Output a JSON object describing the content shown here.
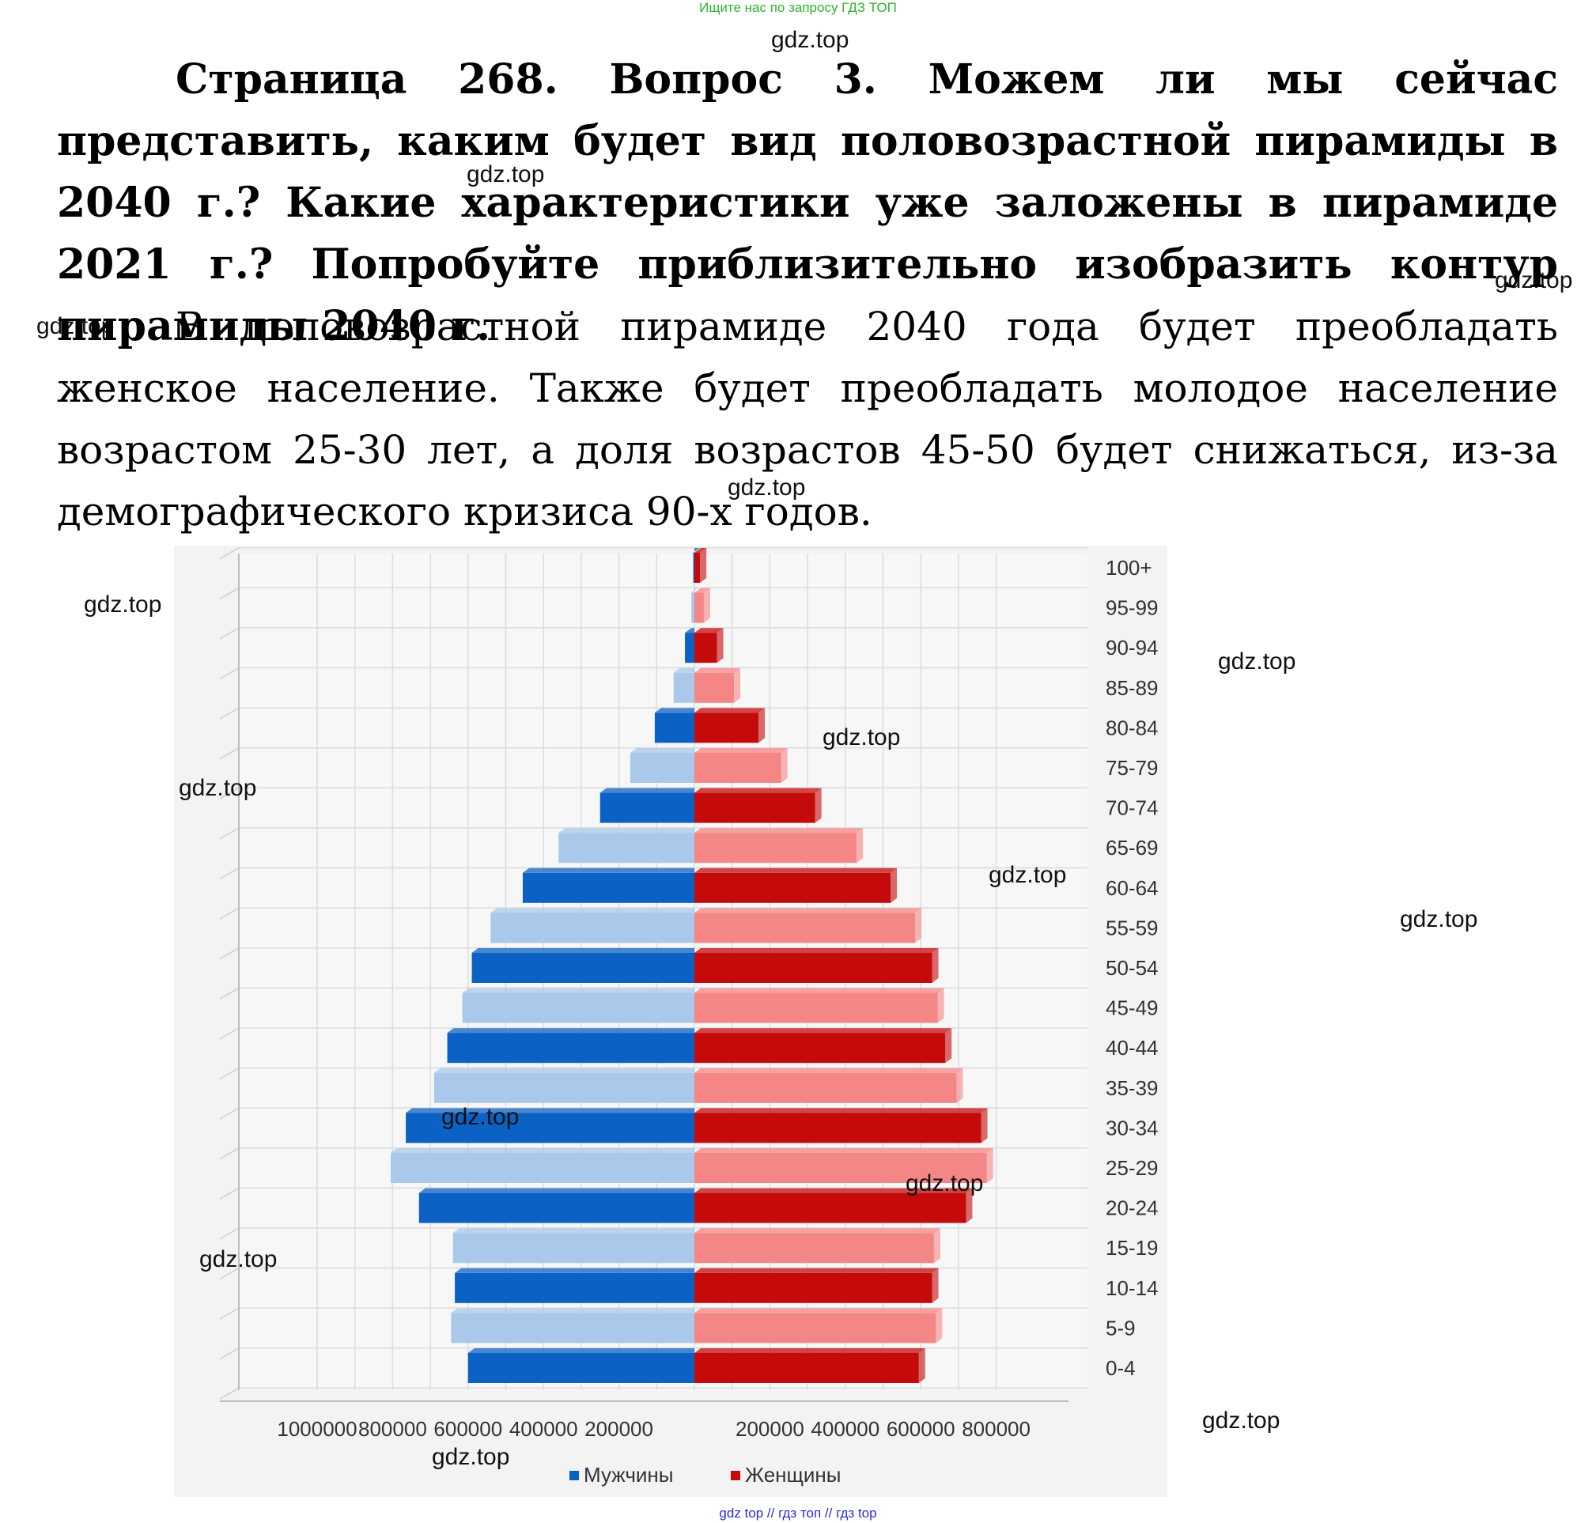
{
  "banners": {
    "top": "Ищите нас по запросу ГДЗ ТОП",
    "bottom": "gdz top  //  гдз топ  //  гдз top"
  },
  "watermarks": [
    "gdz.top",
    "gdz.top",
    "gdz.top",
    "gdz.top",
    "gdz.top",
    "gdz.top",
    "gdz.top",
    "gdz.top",
    "gdz.top",
    "gdz.top",
    "gdz.top",
    "gdz.top",
    "gdz.top",
    "gdz.top",
    "gdz.top",
    "gdz.top"
  ],
  "question": "Страница 268. Вопрос 3.  Можем ли мы сейчас представить, каким будет вид половозрастной пирамиды в 2040 г.? Какие характеристики уже заложены в пирамиде 2021 г.? Попробуйте приблизительно изобразить контур пирамиды 2040 г.",
  "answer": "В половозрастной пирамиде 2040 года будет преобладать женское население. Также будет преобладать молодое население возрастом 25-30 лет, а доля возрастов 45-50 будет снижаться, из-за демографического кризиса 90-х годов.",
  "chart_data": {
    "type": "bar",
    "orientation": "horizontal",
    "categories": [
      "0-4",
      "5-9",
      "10-14",
      "15-19",
      "20-24",
      "25-29",
      "30-34",
      "35-39",
      "40-44",
      "45-49",
      "50-54",
      "55-59",
      "60-64",
      "65-69",
      "70-74",
      "75-79",
      "80-84",
      "85-89",
      "90-94",
      "95-99",
      "100+"
    ],
    "series": [
      {
        "name": "Мужчины",
        "values": [
          600000,
          645000,
          635000,
          640000,
          730000,
          805000,
          765000,
          690000,
          655000,
          615000,
          590000,
          540000,
          455000,
          360000,
          250000,
          170000,
          105000,
          55000,
          25000,
          8000,
          3000
        ]
      },
      {
        "name": "Женщины",
        "values": [
          595000,
          640000,
          630000,
          635000,
          720000,
          775000,
          760000,
          695000,
          665000,
          645000,
          630000,
          585000,
          520000,
          430000,
          320000,
          230000,
          170000,
          105000,
          60000,
          25000,
          15000
        ]
      }
    ],
    "x_ticks_left": [
      "1000000",
      "800000",
      "600000",
      "400000",
      "200000"
    ],
    "x_ticks_right": [
      "200000",
      "400000",
      "600000",
      "800000"
    ],
    "xlim_left": [
      0,
      1000000
    ],
    "xlim_right": [
      0,
      800000
    ],
    "colors": {
      "male_dark": "#0b62c4",
      "male_light": "#a9c8ea",
      "female_dark": "#c40a0a",
      "female_light": "#f58686"
    },
    "grid": true,
    "legend_position": "bottom"
  }
}
